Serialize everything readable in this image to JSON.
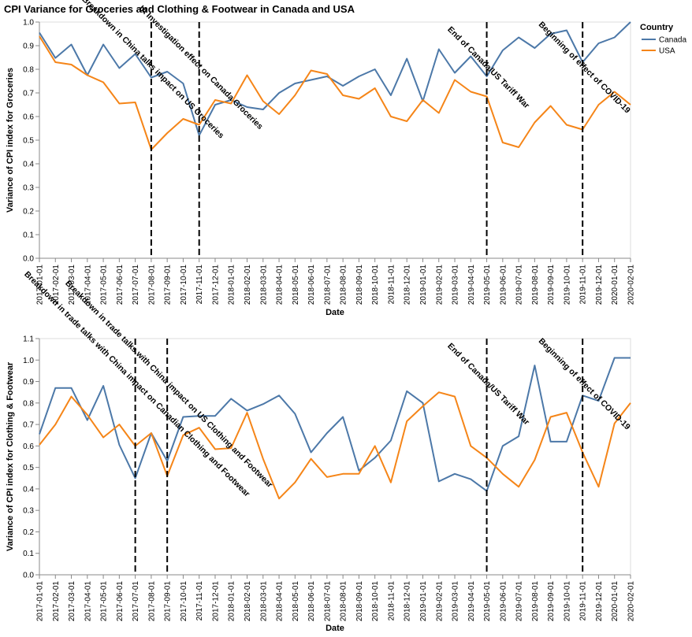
{
  "title": "CPI Variance for Groceries and Clothing & Footwear in Canada and USA",
  "legend": {
    "title": "Country",
    "entries": [
      {
        "name": "Canada",
        "color": "#4c78a8"
      },
      {
        "name": "USA",
        "color": "#f58518"
      }
    ]
  },
  "chart_data": [
    {
      "type": "line",
      "xlabel": "Date",
      "ylabel": "Variance of CPI index for Groceries",
      "ylim": [
        0,
        1.0
      ],
      "y_ticks": [
        "0.0",
        "0.1",
        "0.2",
        "0.3",
        "0.4",
        "0.5",
        "0.6",
        "0.7",
        "0.8",
        "0.9",
        "1.0"
      ],
      "x": [
        "2017-01-01",
        "2017-02-01",
        "2017-03-01",
        "2017-04-01",
        "2017-05-01",
        "2017-06-01",
        "2017-07-01",
        "2017-08-01",
        "2017-09-01",
        "2017-10-01",
        "2017-11-01",
        "2017-12-01",
        "2018-01-01",
        "2018-02-01",
        "2018-03-01",
        "2018-04-01",
        "2018-05-01",
        "2018-06-01",
        "2018-07-01",
        "2018-08-01",
        "2018-09-01",
        "2018-10-01",
        "2018-11-01",
        "2018-12-01",
        "2019-01-01",
        "2019-02-01",
        "2019-03-01",
        "2019-04-01",
        "2019-05-01",
        "2019-06-01",
        "2019-07-01",
        "2019-08-01",
        "2019-09-01",
        "2019-10-01",
        "2019-11-01",
        "2019-12-01",
        "2020-01-01",
        "2020-02-01"
      ],
      "series": [
        {
          "name": "Canada",
          "values": [
            0.955,
            0.848,
            0.905,
            0.775,
            0.905,
            0.805,
            0.865,
            0.765,
            0.79,
            0.74,
            0.52,
            0.65,
            0.67,
            0.64,
            0.63,
            0.7,
            0.74,
            0.755,
            0.77,
            0.73,
            0.77,
            0.8,
            0.69,
            0.845,
            0.665,
            0.885,
            0.785,
            0.855,
            0.77,
            0.88,
            0.935,
            0.89,
            0.95,
            0.965,
            0.83,
            0.91,
            0.935,
            1.0
          ]
        },
        {
          "name": "USA",
          "values": [
            0.94,
            0.83,
            0.82,
            0.775,
            0.745,
            0.655,
            0.66,
            0.46,
            0.53,
            0.59,
            0.565,
            0.67,
            0.655,
            0.775,
            0.665,
            0.61,
            0.69,
            0.795,
            0.78,
            0.69,
            0.675,
            0.72,
            0.6,
            0.58,
            0.67,
            0.615,
            0.755,
            0.705,
            0.685,
            0.49,
            0.47,
            0.575,
            0.645,
            0.565,
            0.545,
            0.65,
            0.705,
            0.65
          ]
        }
      ],
      "events": [
        {
          "date": "2017-08-01",
          "label": "Breakdown in China talks impact on US Groceries"
        },
        {
          "date": "2017-11-01",
          "label": "IA Investigation effect on Canada Groceries"
        },
        {
          "date": "2019-05-01",
          "label": "End of Canada/US Tariff War"
        },
        {
          "date": "2019-11-01",
          "label": "Beginning of effect of COVID-19"
        }
      ]
    },
    {
      "type": "line",
      "xlabel": "Date",
      "ylabel": "Variance of CPI index for Clothing & Footwear",
      "ylim": [
        0,
        1.1
      ],
      "y_ticks": [
        "0.0",
        "0.1",
        "0.2",
        "0.3",
        "0.4",
        "0.5",
        "0.6",
        "0.7",
        "0.8",
        "0.9",
        "1.0",
        "1.1"
      ],
      "x": [
        "2017-01-01",
        "2017-02-01",
        "2017-03-01",
        "2017-04-01",
        "2017-05-01",
        "2017-06-01",
        "2017-07-01",
        "2017-08-01",
        "2017-09-01",
        "2017-10-01",
        "2017-11-01",
        "2017-12-01",
        "2018-01-01",
        "2018-02-01",
        "2018-03-01",
        "2018-04-01",
        "2018-05-01",
        "2018-06-01",
        "2018-07-01",
        "2018-08-01",
        "2018-09-01",
        "2018-10-01",
        "2018-11-01",
        "2018-12-01",
        "2019-01-01",
        "2019-02-01",
        "2019-03-01",
        "2019-04-01",
        "2019-05-01",
        "2019-06-01",
        "2019-07-01",
        "2019-08-01",
        "2019-09-01",
        "2019-10-01",
        "2019-11-01",
        "2019-12-01",
        "2020-01-01",
        "2020-02-01"
      ],
      "series": [
        {
          "name": "Canada",
          "values": [
            0.655,
            0.87,
            0.87,
            0.72,
            0.88,
            0.605,
            0.45,
            0.66,
            0.53,
            0.735,
            0.74,
            0.74,
            0.82,
            0.765,
            0.795,
            0.835,
            0.75,
            0.57,
            0.66,
            0.735,
            0.485,
            0.545,
            0.625,
            0.855,
            0.8,
            0.435,
            0.47,
            0.445,
            0.39,
            0.6,
            0.645,
            0.975,
            0.62,
            0.62,
            0.835,
            0.81,
            1.01,
            1.01
          ]
        },
        {
          "name": "USA",
          "values": [
            0.605,
            0.7,
            0.83,
            0.745,
            0.64,
            0.7,
            0.6,
            0.66,
            0.46,
            0.65,
            0.685,
            0.585,
            0.59,
            0.755,
            0.54,
            0.355,
            0.43,
            0.54,
            0.455,
            0.47,
            0.47,
            0.6,
            0.43,
            0.715,
            0.785,
            0.85,
            0.83,
            0.6,
            0.545,
            0.47,
            0.41,
            0.535,
            0.735,
            0.755,
            0.57,
            0.41,
            0.705,
            0.8
          ]
        }
      ],
      "events": [
        {
          "date": "2017-07-01",
          "label": "Breakdown in trade talks with China impact on Canadian Clothing and Footwear"
        },
        {
          "date": "2017-09-01",
          "label": "Breakdown in trade talks with China impact on US Clothing and Footwear"
        },
        {
          "date": "2019-05-01",
          "label": "End of Canada/US Tariff War"
        },
        {
          "date": "2019-11-01",
          "label": "Beginning of effect of COVID-19"
        }
      ]
    }
  ]
}
